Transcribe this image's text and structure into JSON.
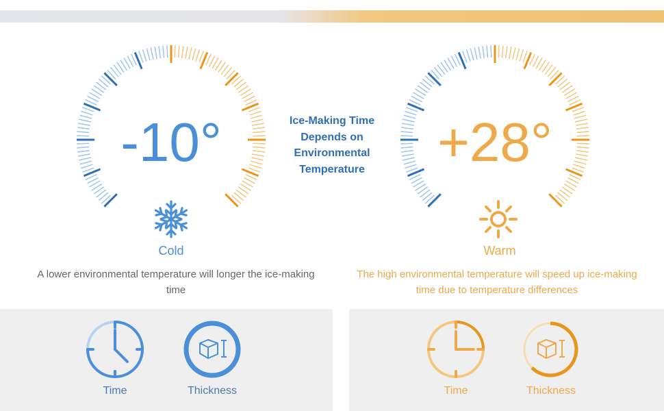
{
  "theme": {
    "cold_light": "#9fc6ee",
    "cold_dark": "#2f6fb4",
    "cold_text": "#4a8fd8",
    "warm_light": "#f3c77f",
    "warm_dark": "#e8961e",
    "warm_text": "#eda94a"
  },
  "center_title": "Ice-Making Time\nDepends on\nEnvironmental\nTemperature",
  "cold": {
    "temperature": "-10°",
    "label": "Cold",
    "icon": "snowflake-icon",
    "description": "A lower environmental temperature will longer the ice-making time",
    "metrics": [
      {
        "icon": "clock-icon",
        "label": "Time"
      },
      {
        "icon": "ice-thickness-icon",
        "label": "Thickness"
      }
    ]
  },
  "warm": {
    "temperature": "+28°",
    "label": "Warm",
    "icon": "sun-icon",
    "description": "The high environmental temperature will speed up ice-making time due to temperature differences",
    "metrics": [
      {
        "icon": "clock-icon",
        "label": "Time"
      },
      {
        "icon": "ice-thickness-icon",
        "label": "Thickness"
      }
    ]
  }
}
